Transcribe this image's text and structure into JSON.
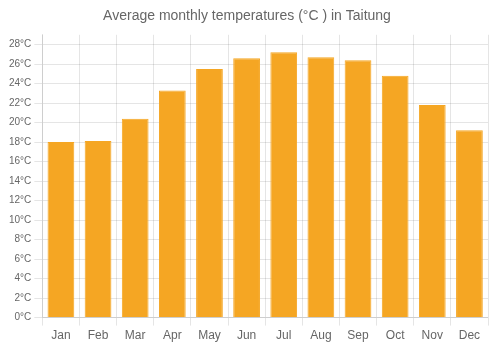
{
  "chart_data": {
    "type": "bar",
    "title": "Average monthly temperatures (°C ) in Taitung",
    "categories": [
      "Jan",
      "Feb",
      "Mar",
      "Apr",
      "May",
      "Jun",
      "Jul",
      "Aug",
      "Sep",
      "Oct",
      "Nov",
      "Dec"
    ],
    "values": [
      18.0,
      18.1,
      20.4,
      23.3,
      25.5,
      26.6,
      27.2,
      26.7,
      26.4,
      24.8,
      21.8,
      19.2
    ],
    "color": "#F5A623",
    "ylim": [
      0,
      29
    ],
    "yticks": [
      {
        "value": 0,
        "label": "0°C"
      },
      {
        "value": 2,
        "label": "2°C"
      },
      {
        "value": 4,
        "label": "4°C"
      },
      {
        "value": 6,
        "label": "6°C"
      },
      {
        "value": 8,
        "label": "8°C"
      },
      {
        "value": 10,
        "label": "10°C"
      },
      {
        "value": 12,
        "label": "12°C"
      },
      {
        "value": 14,
        "label": "14°C"
      },
      {
        "value": 16,
        "label": "16°C"
      },
      {
        "value": 18,
        "label": "18°C"
      },
      {
        "value": 20,
        "label": "20°C"
      },
      {
        "value": 22,
        "label": "22°C"
      },
      {
        "value": 24,
        "label": "24°C"
      },
      {
        "value": 26,
        "label": "26°C"
      },
      {
        "value": 28,
        "label": "28°C"
      }
    ],
    "grid": true
  }
}
